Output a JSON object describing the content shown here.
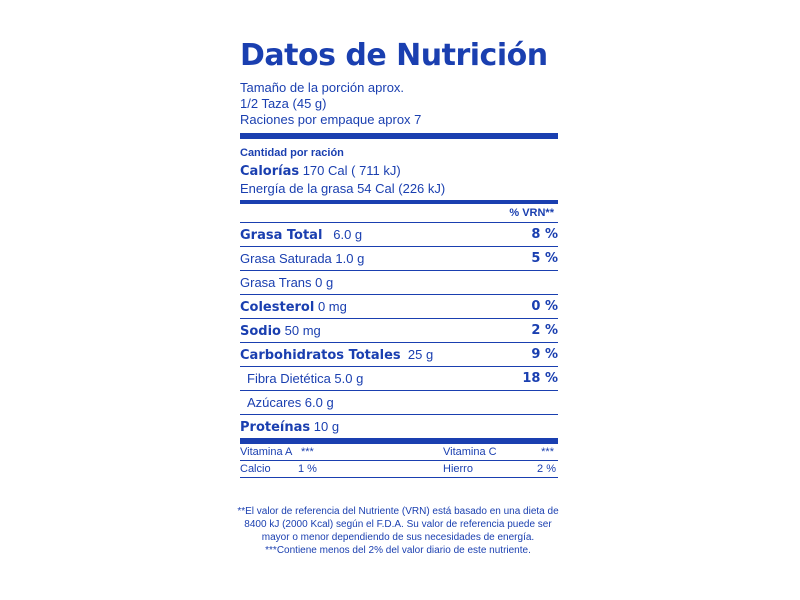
{
  "title": "Datos de Nutrición",
  "serving": {
    "size_label": "Tamaño de la porción aprox.",
    "size_value": "1/2 Taza (45 g)",
    "servings": "Raciones por empaque aprox 7"
  },
  "amount_per_serving": "Cantidad por ración",
  "calories": {
    "label": "Calorías",
    "value": "170 Cal ( 711 kJ)",
    "fat_energy": "Energía de la grasa 54 Cal (226 kJ)"
  },
  "vrn_header": "% VRN**",
  "nutrients": [
    {
      "label": "Grasa Total",
      "amount": "6.0 g",
      "pct": "8 %"
    },
    {
      "label": "Grasa Saturada 1.0 g",
      "amount": "",
      "pct": "5 %"
    },
    {
      "label": "Grasa Trans 0 g",
      "amount": "",
      "pct": ""
    },
    {
      "label": "Colesterol",
      "amount": "0 mg",
      "pct": "0 %"
    },
    {
      "label": "Sodio",
      "amount": "50 mg",
      "pct": "2 %"
    },
    {
      "label": "Carbohidratos Totales",
      "amount": "25 g",
      "pct": "9 %"
    },
    {
      "label": "Fibra Dietética 5.0 g",
      "amount": "",
      "pct": "18 %"
    },
    {
      "label": "Azúcares 6.0 g",
      "amount": "",
      "pct": ""
    },
    {
      "label": "Proteínas",
      "amount": "10 g",
      "pct": ""
    }
  ],
  "vitamins": [
    {
      "left_label": "Vitamina A",
      "left_value": "***",
      "right_label": "Vitamina C",
      "right_value": "***"
    },
    {
      "left_label": "Calcio",
      "left_value": "1 %",
      "right_label": "Hierro",
      "right_value": "2 %"
    }
  ],
  "footnotes": [
    "**El valor de referencia del Nutriente (VRN) está basado en una dieta de",
    "8400 kJ (2000 Kcal) según el F.D.A.  Su valor de referencia puede ser",
    "mayor o menor dependiendo de sus necesidades de energía.",
    "***Contiene menos del 2% del valor diario de este nutriente."
  ],
  "colors": {
    "ink": "#1a3fb0",
    "background": "#ffffff"
  }
}
